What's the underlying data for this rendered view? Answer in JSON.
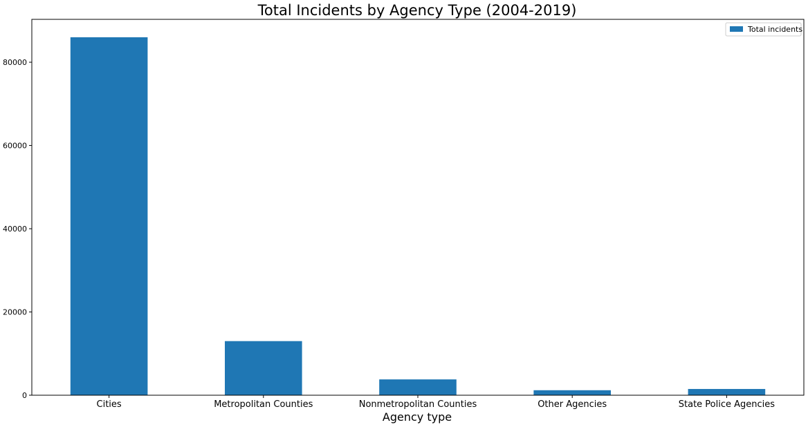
{
  "chart_data": {
    "type": "bar",
    "title": "Total Incidents by Agency Type (2004-2019)",
    "xlabel": "Agency type",
    "ylabel": "",
    "categories": [
      "Cities",
      "Metropolitan Counties",
      "Nonmetropolitan Counties",
      "Other Agencies",
      "State Police Agencies"
    ],
    "series": [
      {
        "name": "Total incidents",
        "values": [
          86000,
          13000,
          3800,
          1200,
          1500
        ]
      }
    ],
    "ylim": [
      0,
      90300
    ],
    "yticks": [
      0,
      20000,
      40000,
      60000,
      80000
    ],
    "grid": false,
    "legend_position": "top-right",
    "colors": {
      "bar": "#1f77b4",
      "axis": "#000000"
    }
  }
}
